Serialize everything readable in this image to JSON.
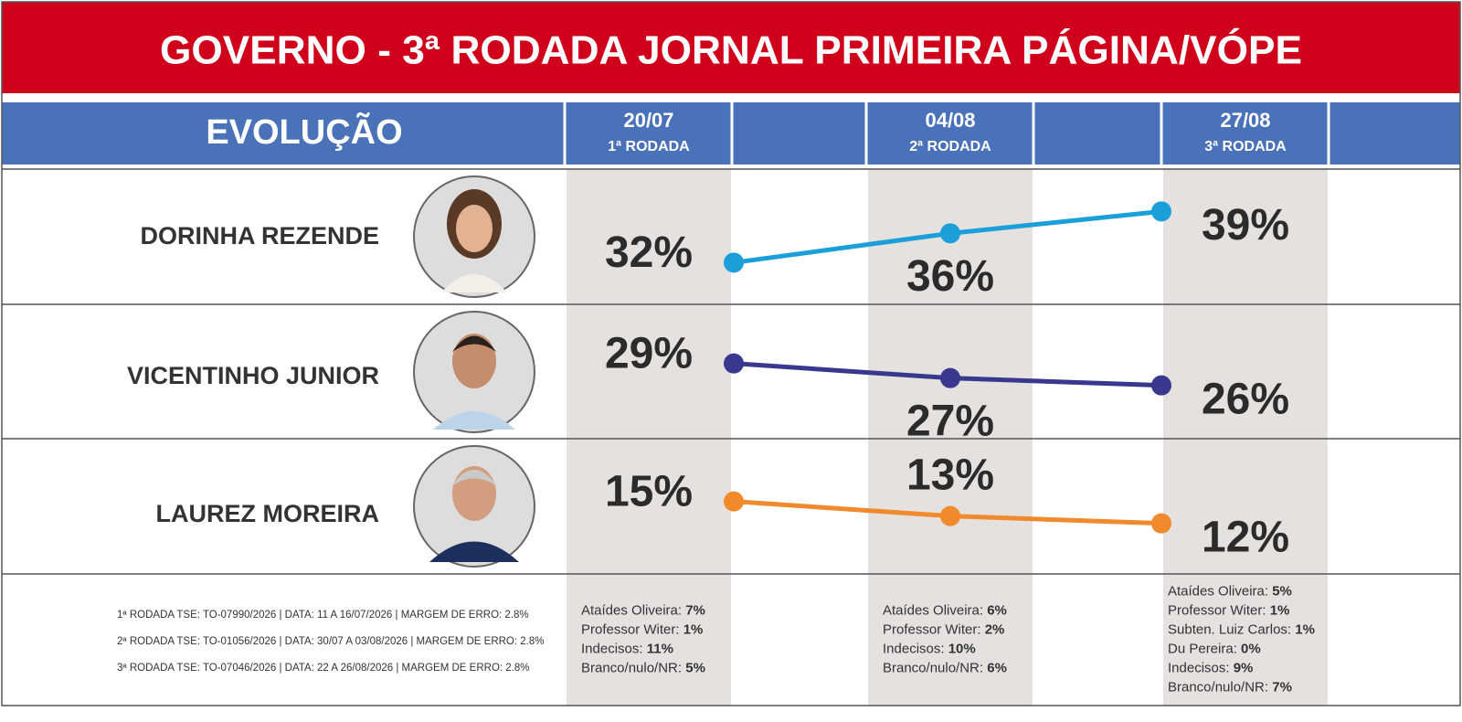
{
  "title": "GOVERNO - 3ª RODADA JORNAL PRIMEIRA PÁGINA/VÓPE",
  "header": {
    "label": "EVOLUÇÃO",
    "rounds": [
      {
        "date": "20/07",
        "name": "1ª RODADA"
      },
      {
        "date": "04/08",
        "name": "2ª RODADA"
      },
      {
        "date": "27/08",
        "name": "3ª RODADA"
      }
    ]
  },
  "candidates": [
    {
      "name": "DORINHA REZENDE",
      "color": "#1a9fd9",
      "values": [
        32,
        36,
        39
      ],
      "value_labels": [
        "32%",
        "36%",
        "39%"
      ]
    },
    {
      "name": "VICENTINHO JUNIOR",
      "color": "#38388f",
      "values": [
        29,
        27,
        26
      ],
      "value_labels": [
        "29%",
        "27%",
        "26%"
      ]
    },
    {
      "name": "LAUREZ MOREIRA",
      "color": "#f08a2c",
      "values": [
        15,
        13,
        12
      ],
      "value_labels": [
        "15%",
        "13%",
        "12%"
      ]
    }
  ],
  "others": [
    [
      {
        "label": "Ataídes Oliveira:",
        "value": "7%"
      },
      {
        "label": "Professor Witer:",
        "value": "1%"
      },
      {
        "label": "Indecisos:",
        "value": "11%"
      },
      {
        "label": "Branco/nulo/NR:",
        "value": "5%"
      }
    ],
    [
      {
        "label": "Ataídes Oliveira:",
        "value": "6%"
      },
      {
        "label": "Professor Witer:",
        "value": "2%"
      },
      {
        "label": "Indecisos:",
        "value": "10%"
      },
      {
        "label": "Branco/nulo/NR:",
        "value": "6%"
      }
    ],
    [
      {
        "label": "Ataídes Oliveira:",
        "value": "5%"
      },
      {
        "label": "Professor Witer:",
        "value": "1%"
      },
      {
        "label": "Subten. Luiz Carlos:",
        "value": "1%"
      },
      {
        "label": "Du Pereira:",
        "value": "0%"
      },
      {
        "label": "Indecisos:",
        "value": "9%"
      },
      {
        "label": "Branco/nulo/NR:",
        "value": "7%"
      }
    ]
  ],
  "notes": [
    "1ª RODADA TSE: TO-07990/2026 | DATA: 11 A 16/07/2026  |  MARGEM DE ERRO: 2.8%",
    "2ª RODADA TSE: TO-01056/2026 | DATA: 30/07 A 03/08/2026 | MARGEM DE ERRO: 2.8%",
    "3ª RODADA TSE: TO-07046/2026 | DATA: 22 A 26/08/2026  |  MARGEM DE ERRO: 2.8%"
  ]
}
